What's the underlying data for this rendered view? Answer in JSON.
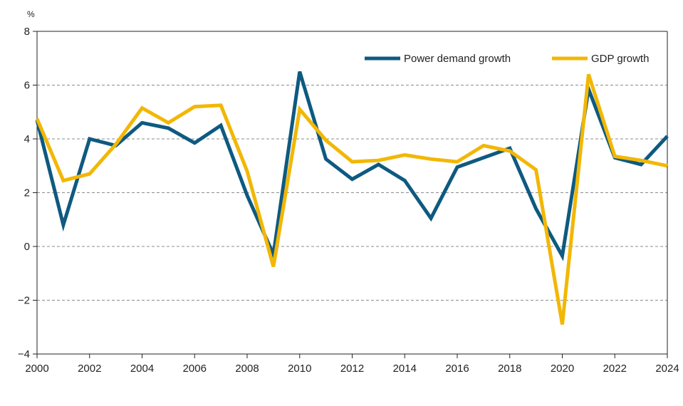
{
  "chart_data": {
    "type": "line",
    "title": "",
    "xlabel": "",
    "ylabel": "%",
    "x": [
      2000,
      2001,
      2002,
      2003,
      2004,
      2005,
      2006,
      2007,
      2008,
      2009,
      2010,
      2011,
      2012,
      2013,
      2014,
      2015,
      2016,
      2017,
      2018,
      2019,
      2020,
      2021,
      2022,
      2023,
      2024
    ],
    "xlim": [
      2000,
      2024
    ],
    "ylim": [
      -4,
      8
    ],
    "x_ticks": [
      "2000",
      "2002",
      "2004",
      "2006",
      "2008",
      "2010",
      "2012",
      "2014",
      "2016",
      "2018",
      "2020",
      "2022",
      "2024"
    ],
    "y_ticks": [
      "8",
      "6",
      "4",
      "2",
      "0",
      "−2",
      "−4"
    ],
    "grid": "horizontal dashed",
    "legend_position": "top-right",
    "series": [
      {
        "name": "Power demand growth",
        "color": "#0e5a80",
        "values": [
          4.7,
          0.8,
          4.0,
          3.75,
          4.6,
          4.4,
          3.85,
          4.5,
          1.9,
          -0.3,
          6.5,
          3.25,
          2.5,
          3.05,
          2.45,
          1.05,
          2.95,
          3.3,
          3.65,
          1.4,
          -0.35,
          5.85,
          3.3,
          3.05,
          4.1
        ]
      },
      {
        "name": "GDP growth",
        "color": "#f2b705",
        "values": [
          4.75,
          2.45,
          2.7,
          3.8,
          5.15,
          4.6,
          5.2,
          5.25,
          2.8,
          -0.75,
          5.1,
          3.95,
          3.15,
          3.2,
          3.4,
          3.25,
          3.15,
          3.75,
          3.55,
          2.85,
          -2.9,
          6.4,
          3.35,
          3.2,
          3.0
        ]
      }
    ]
  }
}
